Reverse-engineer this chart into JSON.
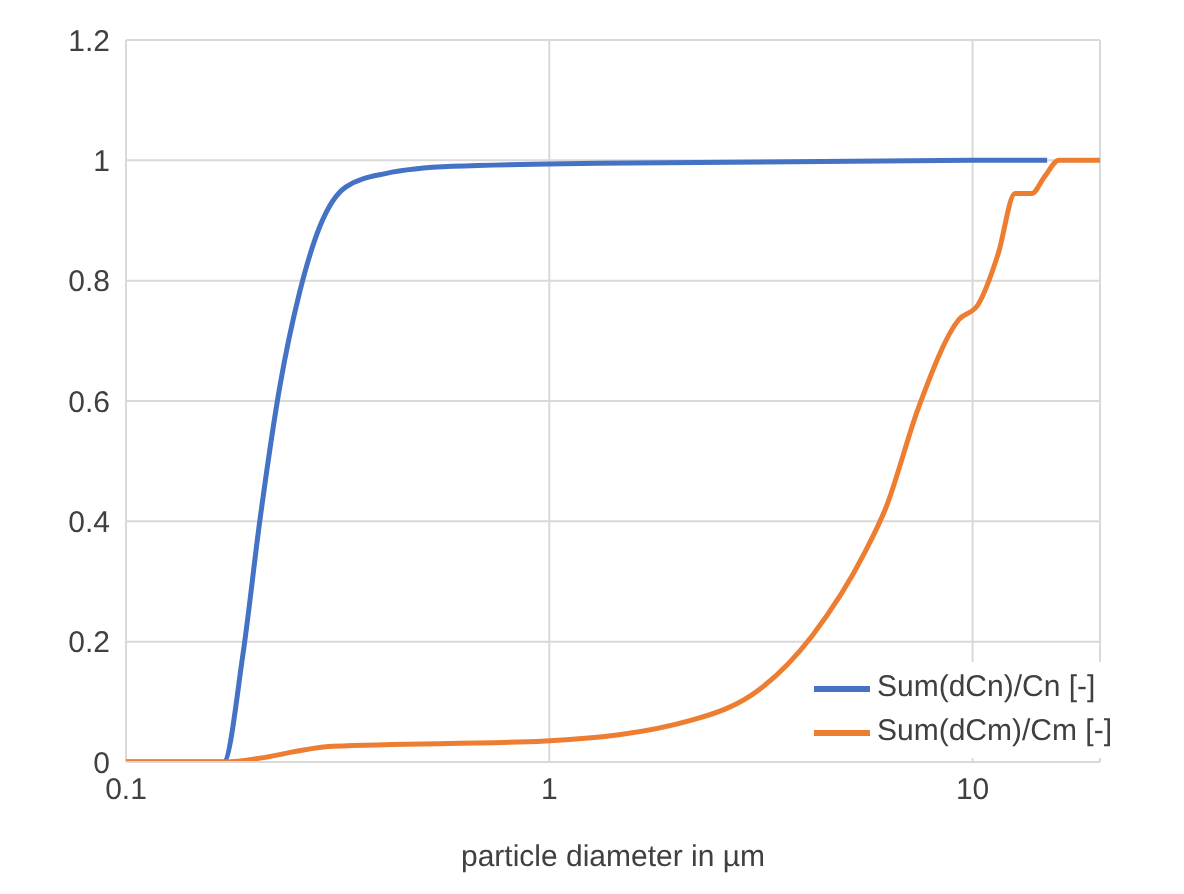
{
  "chart_data": {
    "type": "line",
    "xlabel": "particle diameter in µm",
    "x": [
      0.1,
      0.17,
      0.189,
      0.207,
      0.231,
      0.257,
      0.287,
      0.331,
      0.41,
      0.59,
      1.3,
      10,
      15
    ],
    "series": [
      {
        "name": "Sum(dCn)/Cn [-]",
        "color": "#4472c4",
        "values": [
          0,
          0,
          0.18,
          0.4,
          0.625,
          0.78,
          0.89,
          0.956,
          0.978,
          0.99,
          0.995,
          1,
          1
        ]
      },
      {
        "name": "Sum(dCm)/Cm [-]",
        "color": "#ed7d31",
        "x": [
          0.1,
          0.17,
          0.308,
          0.98,
          2.18,
          3.13,
          4.18,
          5.58,
          6.22,
          7.46,
          9.27,
          10.3,
          11.5,
          12.6,
          13.8,
          14.8,
          16,
          20
        ],
        "values": [
          0,
          0,
          0.026,
          0.035,
          0.07,
          0.12,
          0.21,
          0.35,
          0.42,
          0.59,
          0.735,
          0.76,
          0.845,
          0.945,
          0.945,
          0.973,
          1,
          1
        ]
      }
    ],
    "xlim": [
      0.1,
      20
    ],
    "xticks": [
      0.1,
      1,
      10
    ],
    "log": "x",
    "ylim": [
      0,
      1.2
    ],
    "yticks": [
      0,
      0.2,
      0.4,
      0.6,
      0.8,
      1,
      1.2
    ],
    "grid": true,
    "legend": "bottom right",
    "marker": "none",
    "line_style": "solid"
  }
}
